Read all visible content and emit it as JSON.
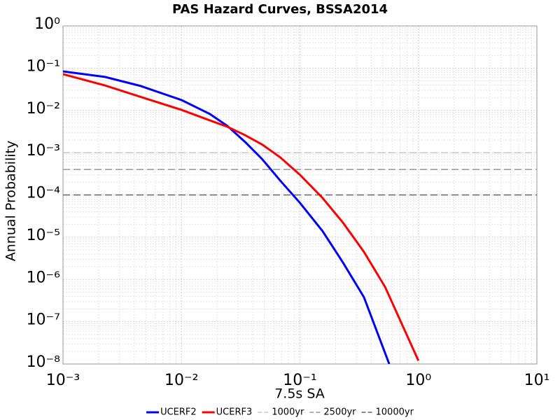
{
  "chart_data": {
    "type": "line",
    "title": "PAS Hazard Curves, BSSA2014",
    "x_label": "7.5s SA",
    "y_label": "Annual Probability",
    "x_log": true,
    "y_log": true,
    "grid": true,
    "minor_grid": true,
    "legend": "bottom",
    "xlim": [
      0.001,
      10
    ],
    "ylim": [
      1e-08,
      1
    ],
    "xticks": [
      {
        "value": 0.001,
        "label": "10⁻³"
      },
      {
        "value": 0.01,
        "label": "10⁻²"
      },
      {
        "value": 0.1,
        "label": "10⁻¹"
      },
      {
        "value": 1,
        "label": "10⁰"
      },
      {
        "value": 10,
        "label": "10¹"
      }
    ],
    "yticks": [
      {
        "value": 1e-08,
        "label": "10⁻⁸"
      },
      {
        "value": 1e-07,
        "label": "10⁻⁷"
      },
      {
        "value": 1e-06,
        "label": "10⁻⁶"
      },
      {
        "value": 1e-05,
        "label": "10⁻⁵"
      },
      {
        "value": 0.0001,
        "label": "10⁻⁴"
      },
      {
        "value": 0.001,
        "label": "10⁻³"
      },
      {
        "value": 0.01,
        "label": "10⁻²"
      },
      {
        "value": 0.1,
        "label": "10⁻¹"
      },
      {
        "value": 1,
        "label": "10⁰"
      }
    ],
    "series": [
      {
        "name": "UCERF2",
        "color": "#0000ff",
        "x": [
          0.001,
          0.00226,
          0.0045,
          0.01,
          0.0174,
          0.0244,
          0.0344,
          0.0483,
          0.068,
          0.1,
          0.155,
          0.231,
          0.347,
          0.567
        ],
        "values": [
          0.084,
          0.062,
          0.038,
          0.0176,
          0.0082,
          0.0043,
          0.0018,
          0.00069,
          0.00022,
          6.5e-05,
          1.4e-05,
          2.5e-06,
          3.8e-07,
          1e-08
        ]
      },
      {
        "name": "UCERF3",
        "color": "#ff0000",
        "x": [
          0.001,
          0.00226,
          0.0045,
          0.01,
          0.0174,
          0.0244,
          0.0344,
          0.0483,
          0.068,
          0.1,
          0.155,
          0.231,
          0.347,
          0.524,
          1.0
        ],
        "values": [
          0.072,
          0.039,
          0.021,
          0.0103,
          0.0058,
          0.0041,
          0.0026,
          0.00154,
          0.00078,
          0.0003,
          8.5e-05,
          2.2e-05,
          4.5e-06,
          6.6e-07,
          1.2e-08
        ]
      }
    ],
    "reference_lines": [
      {
        "name": "1000yr",
        "value": 0.001,
        "color": "#c8c8c8"
      },
      {
        "name": "2500yr",
        "value": 0.0004,
        "color": "#969696"
      },
      {
        "name": "10000yr",
        "value": 0.0001,
        "color": "#646464"
      }
    ]
  }
}
